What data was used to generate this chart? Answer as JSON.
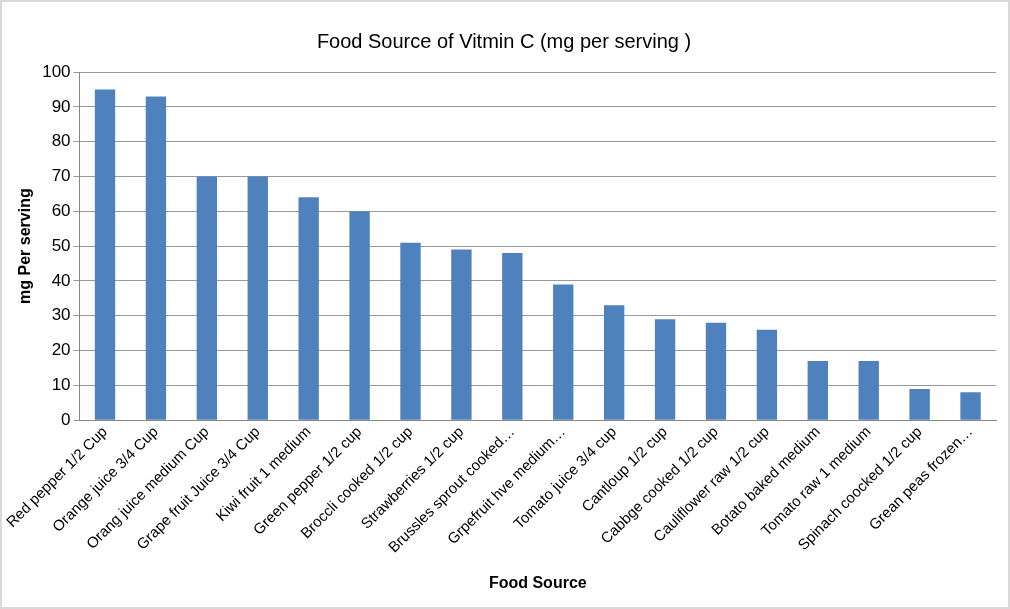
{
  "chart_data": {
    "type": "bar",
    "title": "Food Source of Vitmin C (mg per serving )",
    "xlabel": "Food Source",
    "ylabel": "mg Per serving",
    "categories": [
      "Red pepper 1/2 Cup",
      "Orange juice 3/4 Cup",
      "Orang juice medium Cup",
      "Grape fruit Juice 3/4 Cup",
      "Kiwi fruit 1 medium",
      "Green pepper 1/2 cup",
      "Broccli cooked 1/2 cup",
      "Strawberries 1/2 cup",
      "Brussles sprout cooked…",
      "Grpefruit hve medium…",
      "Tomato juice 3/4 cup",
      "Cantloup 1/2 cup",
      "Cabbge cooked 1/2 cup",
      "Cauliflower raw 1/2 cup",
      "Botato baked medium",
      "Tomato raw 1 medium",
      "Spinach coocked 1/2 cup",
      "Grean peas frozen…"
    ],
    "values": [
      95,
      93,
      70,
      70,
      64,
      60,
      51,
      49,
      48,
      39,
      33,
      29,
      28,
      26,
      17,
      17,
      9,
      8
    ],
    "color": "#4f81bd",
    "ylim": [
      0,
      100
    ],
    "yticks": [
      0,
      10,
      20,
      30,
      40,
      50,
      60,
      70,
      80,
      90,
      100
    ],
    "grid": "y",
    "legend": false
  }
}
